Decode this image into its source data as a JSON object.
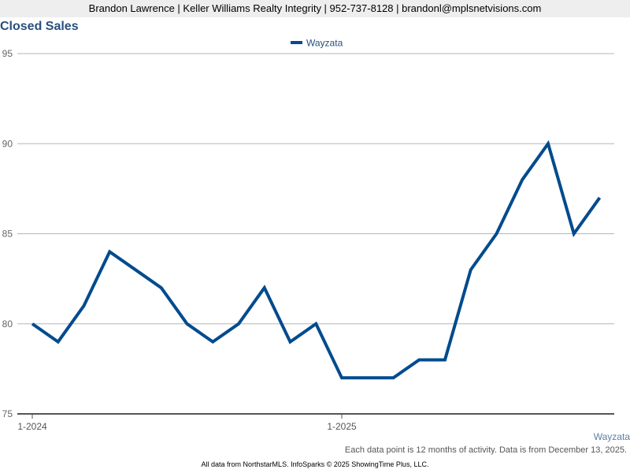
{
  "header": {
    "contact": "Brandon Lawrence | Keller Williams Realty Integrity | 952-737-8128 | brandonl@mplsnetvisions.com"
  },
  "chart_data": {
    "type": "line",
    "title": "Closed Sales",
    "xlabel": "",
    "ylabel": "",
    "ylim": [
      75,
      95
    ],
    "y_ticks": [
      75,
      80,
      85,
      90,
      95
    ],
    "x_tick_labels": [
      {
        "label": "1-2024",
        "index": 0
      },
      {
        "label": "1-2025",
        "index": 12
      }
    ],
    "grid": true,
    "legend_position": "top-center",
    "series": [
      {
        "name": "Wayzata",
        "color": "#004b8d",
        "values": [
          80,
          79,
          81,
          84,
          83,
          82,
          80,
          79,
          80,
          82,
          79,
          80,
          77,
          77,
          77,
          78,
          78,
          83,
          85,
          88,
          90,
          85,
          87
        ]
      }
    ]
  },
  "right_label": "Wayzata",
  "footnote": "Each data point is 12 months of activity. Data is from December 13, 2025.",
  "credit": "All data from NorthstarMLS. InfoSparks © 2025 ShowingTime Plus, LLC."
}
